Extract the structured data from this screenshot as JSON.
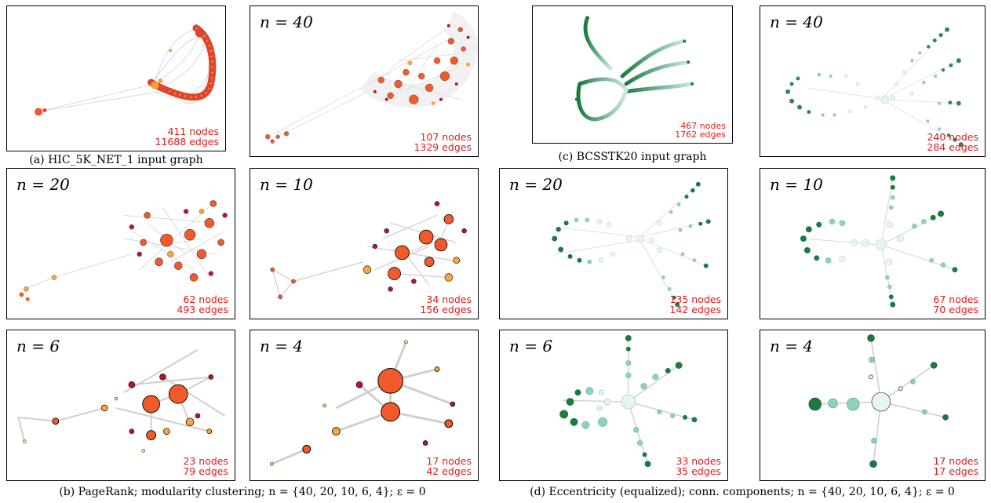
{
  "colors": {
    "pagerank_high": "#f25a2c",
    "pagerank_mid": "#f9a541",
    "pagerank_low": "#b2182b",
    "ecc_dark": "#1b7a3f",
    "ecc_light": "#e8f6f4",
    "stats_text": "#e41a1c"
  },
  "panels": {
    "a_input": {
      "nodes": "411 nodes",
      "edges": "11688 edges"
    },
    "b40": {
      "n": "n = 40",
      "nodes": "107 nodes",
      "edges": "1329 edges"
    },
    "b20": {
      "n": "n = 20",
      "nodes": "62 nodes",
      "edges": "493 edges"
    },
    "b10": {
      "n": "n = 10",
      "nodes": "34 nodes",
      "edges": "156 edges"
    },
    "b6": {
      "n": "n = 6",
      "nodes": "23 nodes",
      "edges": "79 edges"
    },
    "b4": {
      "n": "n = 4",
      "nodes": "17 nodes",
      "edges": "42 edges"
    },
    "c_input": {
      "nodes": "467 nodes",
      "edges": "1762 edges"
    },
    "d40": {
      "n": "n = 40",
      "nodes": "240 nodes",
      "edges": "284 edges"
    },
    "d20": {
      "n": "n = 20",
      "nodes": "135 nodes",
      "edges": "142 edges"
    },
    "d10": {
      "n": "n = 10",
      "nodes": "67 nodes",
      "edges": "70 edges"
    },
    "d6": {
      "n": "n = 6",
      "nodes": "33 nodes",
      "edges": "35 edges"
    },
    "d4": {
      "n": "n = 4",
      "nodes": "17 nodes",
      "edges": "17 edges"
    }
  },
  "captions": {
    "a": "(a) HIC_5K_NET_1 input graph",
    "b": "(b) PageRank; modularity clustering; n = {40, 20, 10, 6, 4}; ε = 0",
    "c": "(c) BCSSTK20 input graph",
    "d": "(d) Eccentricity (equalized); conn. components; n = {40, 20, 10, 6, 4}; ε = 0"
  }
}
